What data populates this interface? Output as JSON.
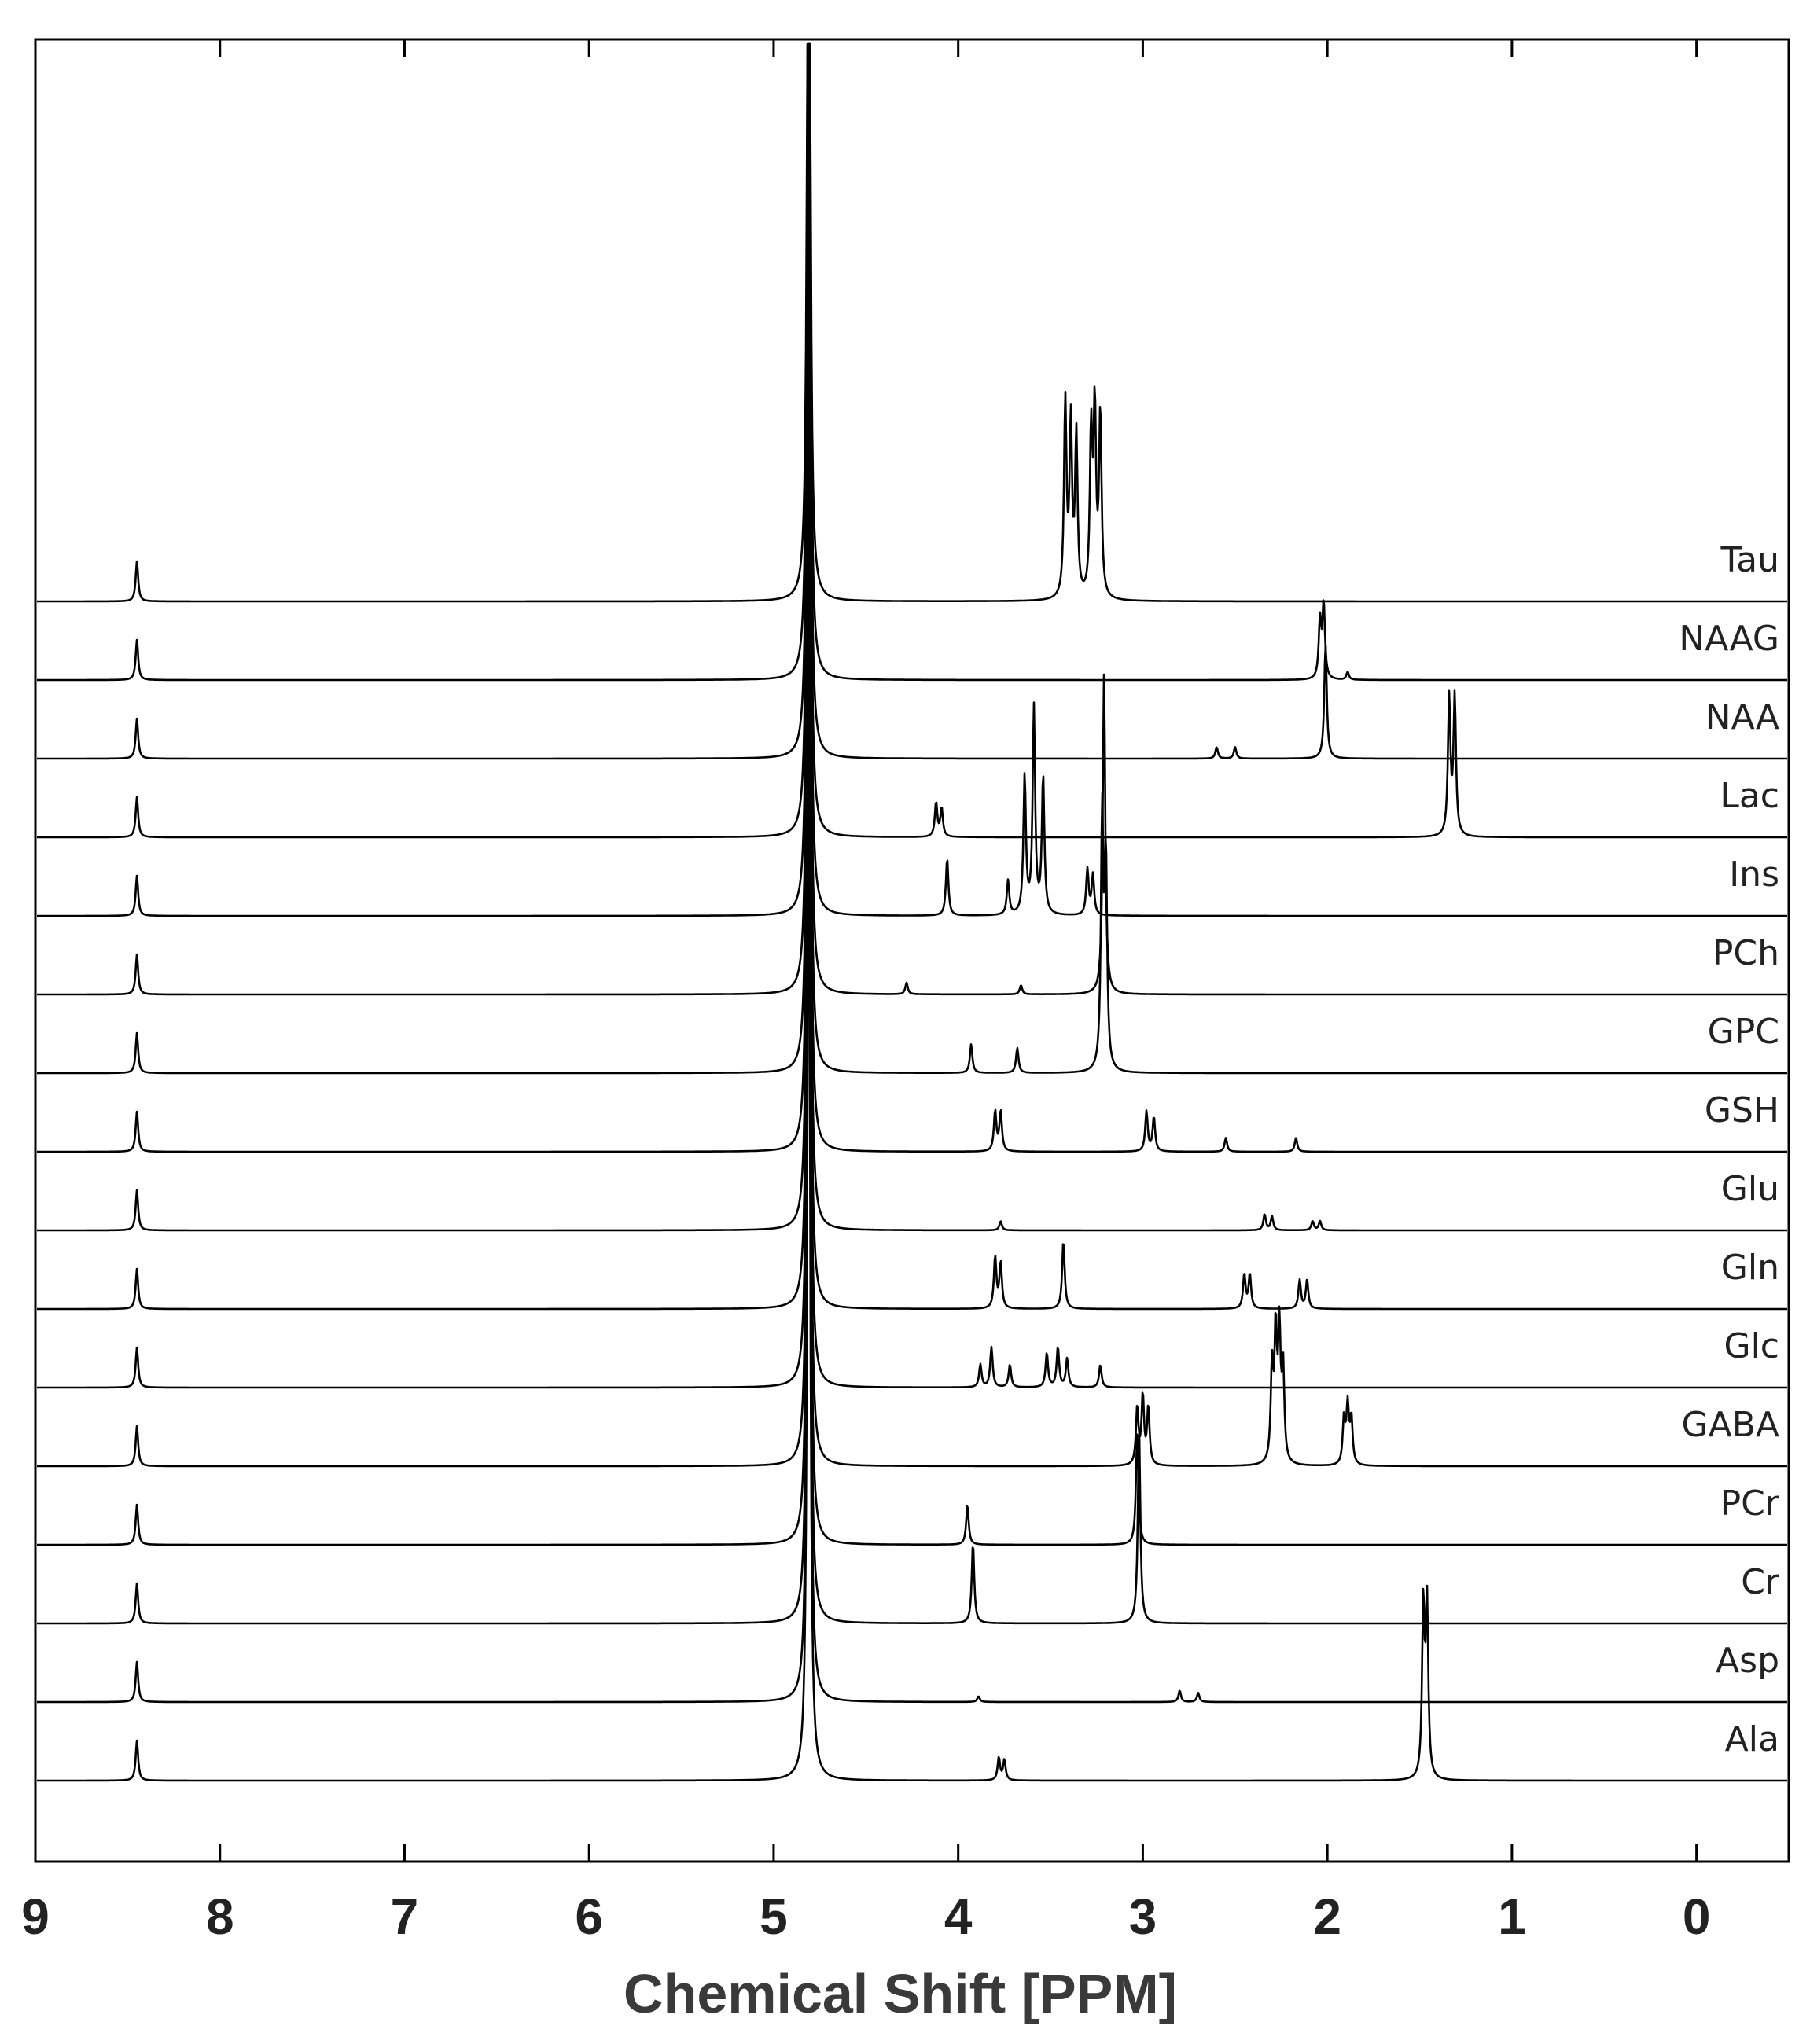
{
  "chart_data": {
    "type": "line",
    "title": "",
    "xlabel": "Chemical Shift [PPM]",
    "ylabel": "",
    "xlim": [
      9,
      -0.5
    ],
    "x_reversed": true,
    "x_ticks": [
      9,
      8,
      7,
      6,
      5,
      4,
      3,
      2,
      1,
      0
    ],
    "grid": false,
    "legend": "none",
    "common_peaks": {
      "water": {
        "ppm": 4.81,
        "height": 1.0
      },
      "formate": {
        "ppm": 8.45,
        "height": 0.035
      }
    },
    "series": [
      {
        "name": "Tau",
        "peaks": [
          {
            "ppm": 3.42,
            "height": 0.17
          },
          {
            "ppm": 3.39,
            "height": 0.15
          },
          {
            "ppm": 3.36,
            "height": 0.14
          },
          {
            "ppm": 3.28,
            "height": 0.14
          },
          {
            "ppm": 3.26,
            "height": 0.16
          },
          {
            "ppm": 3.23,
            "height": 0.16
          }
        ]
      },
      {
        "name": "NAAG",
        "peaks": [
          {
            "ppm": 2.04,
            "height": 0.05
          },
          {
            "ppm": 2.02,
            "height": 0.065
          },
          {
            "ppm": 1.89,
            "height": 0.007
          }
        ]
      },
      {
        "name": "NAA",
        "peaks": [
          {
            "ppm": 2.01,
            "height": 0.1
          },
          {
            "ppm": 2.6,
            "height": 0.01
          },
          {
            "ppm": 2.5,
            "height": 0.01
          }
        ]
      },
      {
        "name": "Lac",
        "peaks": [
          {
            "ppm": 4.12,
            "height": 0.03
          },
          {
            "ppm": 4.09,
            "height": 0.025
          },
          {
            "ppm": 1.34,
            "height": 0.12
          },
          {
            "ppm": 1.31,
            "height": 0.12
          }
        ]
      },
      {
        "name": "Ins",
        "peaks": [
          {
            "ppm": 4.06,
            "height": 0.05
          },
          {
            "ppm": 3.73,
            "height": 0.03
          },
          {
            "ppm": 3.64,
            "height": 0.12
          },
          {
            "ppm": 3.59,
            "height": 0.18
          },
          {
            "ppm": 3.54,
            "height": 0.12
          },
          {
            "ppm": 3.3,
            "height": 0.04
          },
          {
            "ppm": 3.27,
            "height": 0.035
          }
        ]
      },
      {
        "name": "PCh",
        "peaks": [
          {
            "ppm": 4.28,
            "height": 0.01
          },
          {
            "ppm": 3.66,
            "height": 0.008
          },
          {
            "ppm": 3.21,
            "height": 0.28
          }
        ]
      },
      {
        "name": "GPC",
        "peaks": [
          {
            "ppm": 3.93,
            "height": 0.025
          },
          {
            "ppm": 3.68,
            "height": 0.022
          },
          {
            "ppm": 3.22,
            "height": 0.22
          },
          {
            "ppm": 3.2,
            "height": 0.18
          }
        ]
      },
      {
        "name": "GSH",
        "peaks": [
          {
            "ppm": 3.8,
            "height": 0.035
          },
          {
            "ppm": 3.77,
            "height": 0.035
          },
          {
            "ppm": 2.98,
            "height": 0.035
          },
          {
            "ppm": 2.94,
            "height": 0.03
          },
          {
            "ppm": 2.55,
            "height": 0.012
          },
          {
            "ppm": 2.17,
            "height": 0.012
          }
        ]
      },
      {
        "name": "Glu",
        "peaks": [
          {
            "ppm": 3.77,
            "height": 0.008
          },
          {
            "ppm": 2.34,
            "height": 0.014
          },
          {
            "ppm": 2.3,
            "height": 0.012
          },
          {
            "ppm": 2.08,
            "height": 0.008
          },
          {
            "ppm": 2.04,
            "height": 0.008
          }
        ]
      },
      {
        "name": "Gln",
        "peaks": [
          {
            "ppm": 3.8,
            "height": 0.045
          },
          {
            "ppm": 3.77,
            "height": 0.04
          },
          {
            "ppm": 3.43,
            "height": 0.06
          },
          {
            "ppm": 2.45,
            "height": 0.03
          },
          {
            "ppm": 2.42,
            "height": 0.03
          },
          {
            "ppm": 2.15,
            "height": 0.025
          },
          {
            "ppm": 2.11,
            "height": 0.025
          }
        ]
      },
      {
        "name": "Glc",
        "peaks": [
          {
            "ppm": 3.88,
            "height": 0.02
          },
          {
            "ppm": 3.82,
            "height": 0.035
          },
          {
            "ppm": 3.72,
            "height": 0.02
          },
          {
            "ppm": 3.52,
            "height": 0.03
          },
          {
            "ppm": 3.46,
            "height": 0.035
          },
          {
            "ppm": 3.41,
            "height": 0.025
          },
          {
            "ppm": 3.23,
            "height": 0.02
          }
        ]
      },
      {
        "name": "GABA",
        "peaks": [
          {
            "ppm": 3.03,
            "height": 0.05
          },
          {
            "ppm": 3.0,
            "height": 0.06
          },
          {
            "ppm": 2.97,
            "height": 0.05
          },
          {
            "ppm": 2.3,
            "height": 0.08
          },
          {
            "ppm": 2.28,
            "height": 0.11
          },
          {
            "ppm": 2.26,
            "height": 0.11
          },
          {
            "ppm": 2.24,
            "height": 0.08
          },
          {
            "ppm": 1.91,
            "height": 0.04
          },
          {
            "ppm": 1.89,
            "height": 0.05
          },
          {
            "ppm": 1.87,
            "height": 0.04
          }
        ]
      },
      {
        "name": "PCr",
        "peaks": [
          {
            "ppm": 3.95,
            "height": 0.035
          },
          {
            "ppm": 3.03,
            "height": 0.1
          }
        ]
      },
      {
        "name": "Cr",
        "peaks": [
          {
            "ppm": 3.92,
            "height": 0.07
          },
          {
            "ppm": 3.02,
            "height": 0.17
          }
        ]
      },
      {
        "name": "Asp",
        "peaks": [
          {
            "ppm": 3.89,
            "height": 0.005
          },
          {
            "ppm": 2.8,
            "height": 0.01
          },
          {
            "ppm": 2.7,
            "height": 0.008
          }
        ]
      },
      {
        "name": "Ala",
        "peaks": [
          {
            "ppm": 3.78,
            "height": 0.02
          },
          {
            "ppm": 3.75,
            "height": 0.018
          },
          {
            "ppm": 1.48,
            "height": 0.15
          },
          {
            "ppm": 1.46,
            "height": 0.15
          }
        ]
      }
    ]
  }
}
